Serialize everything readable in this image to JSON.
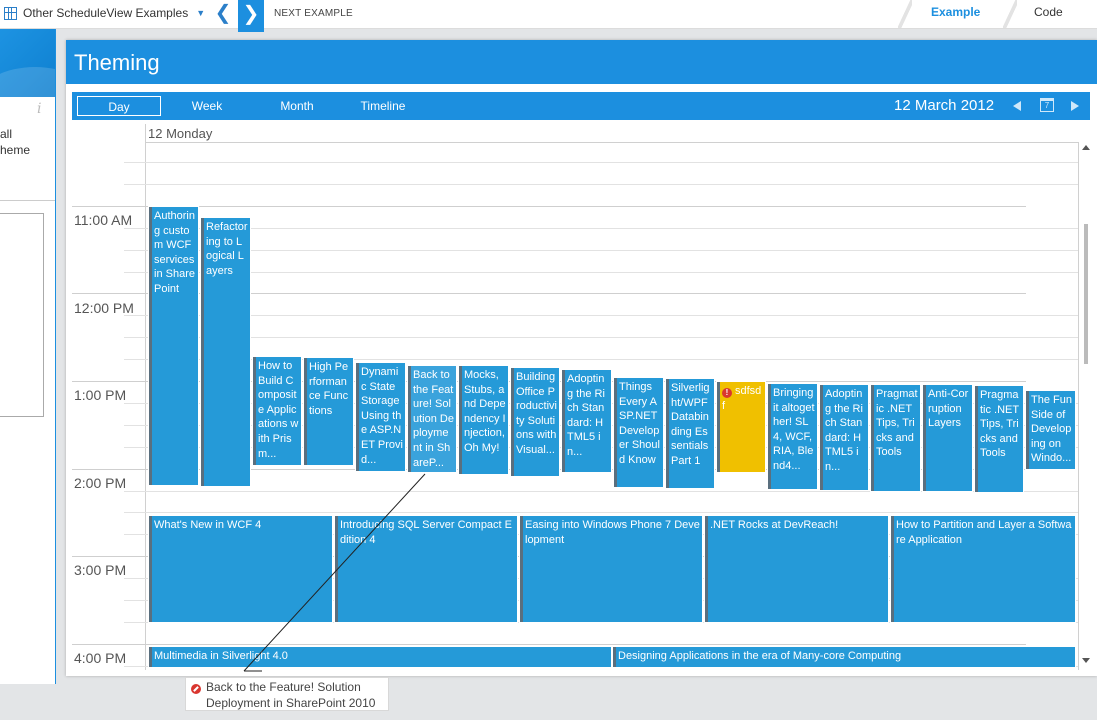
{
  "topbar": {
    "example_selector": "Other ScheduleView Examples",
    "next_example": "NEXT EXAMPLE",
    "tab_example": "Example",
    "tab_code": "Code"
  },
  "left_pane": {
    "text1": "all",
    "text2": "heme"
  },
  "panel": {
    "title": "Theming"
  },
  "toolbar": {
    "views": [
      "Day",
      "Week",
      "Month",
      "Timeline"
    ],
    "active_view": "Day",
    "date": "12 March 2012"
  },
  "day_header": "12 Monday",
  "time_labels": [
    "11:00 AM",
    "12:00 PM",
    "1:00 PM",
    "2:00 PM",
    "3:00 PM",
    "4:00 PM"
  ],
  "appointments": [
    "Authoring custom WCF services in SharePoint",
    "Refactoring to Logical Layers",
    "How to Build Composite Applications with Prism...",
    "High Performance Functions",
    "Dynamic State Storage Using the ASP.NET Provid...",
    "Back to the Feature! Solution Deployment in ShareP...",
    "Mocks, Stubs, and Dependency Injection, Oh My!",
    "Building Office Productivity Solutions with Visual...",
    "Adopting the Rich Standard: HTML5 in...",
    "Things Every ASP.NET Developer Should Know",
    "Silverlight/WPF Databinding Essentials Part 1",
    "sdfsdf",
    "Bringing it altogether! SL4, WCF, RIA, Blend4...",
    "Adopting the Rich Standard: HTML5 in...",
    "Pragmatic .NET Tips, Tricks and Tools",
    "Anti-Corruption Layers",
    "Pragmatic .NET Tips, Tricks and Tools",
    "The Fun Side of Developing on Windo...",
    "What's New in WCF 4",
    "Introducing SQL Server Compact Edition 4",
    "Easing into Windows Phone 7 Development",
    ".NET Rocks at DevReach!",
    "How to Partition and Layer a Software Application",
    "Multimedia in Silverlight 4.0",
    "Designing Applications in the era of Many-core Computing"
  ],
  "drag_tooltip": {
    "line1": "Back to the Feature! Solution",
    "line2": "Deployment in SharePoint 2010"
  },
  "colors": {
    "accent": "#1c8fdf",
    "appointment": "#259ad8",
    "appointment_alert": "#f0c000",
    "warning": "#d9362f"
  }
}
